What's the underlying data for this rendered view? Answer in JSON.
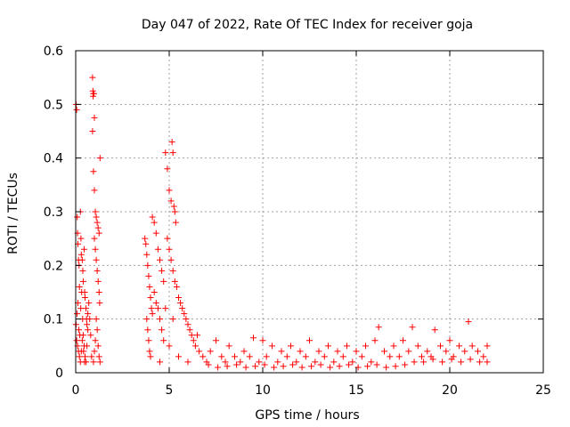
{
  "chart_data": {
    "type": "scatter",
    "title": "Day 047 of 2022, Rate Of TEC Index for receiver goja",
    "xlabel": "GPS time / hours",
    "ylabel": "ROTI / TECUs",
    "xlim": [
      0,
      25
    ],
    "ylim": [
      0,
      0.6
    ],
    "x_ticks": [
      0,
      5,
      10,
      15,
      20,
      25
    ],
    "y_ticks": [
      0,
      0.1,
      0.2,
      0.3,
      0.4,
      0.5,
      0.6
    ],
    "x_tick_labels": [
      "0",
      "5",
      "10",
      "15",
      "20",
      "25"
    ],
    "y_tick_labels": [
      "0",
      "0.1",
      "0.2",
      "0.3",
      "0.4",
      "0.5",
      "0.6"
    ],
    "grid": true,
    "marker": "plus",
    "color": "#ff0000",
    "series": [
      {
        "points": [
          [
            0.02,
            0.5
          ],
          [
            0.05,
            0.49
          ],
          [
            0.08,
            0.29
          ],
          [
            0.1,
            0.26
          ],
          [
            0.12,
            0.24
          ],
          [
            0.15,
            0.21
          ],
          [
            0.18,
            0.2
          ],
          [
            0.2,
            0.16
          ],
          [
            0.25,
            0.3
          ],
          [
            0.28,
            0.25
          ],
          [
            0.3,
            0.22
          ],
          [
            0.35,
            0.21
          ],
          [
            0.38,
            0.19
          ],
          [
            0.4,
            0.17
          ],
          [
            0.45,
            0.23
          ],
          [
            0.48,
            0.15
          ],
          [
            0.5,
            0.14
          ],
          [
            0.55,
            0.12
          ],
          [
            0.58,
            0.1
          ],
          [
            0.6,
            0.09
          ],
          [
            0.65,
            0.08
          ],
          [
            0.05,
            0.06
          ],
          [
            0.1,
            0.05
          ],
          [
            0.15,
            0.04
          ],
          [
            0.2,
            0.03
          ],
          [
            0.25,
            0.02
          ],
          [
            0.3,
            0.04
          ],
          [
            0.35,
            0.06
          ],
          [
            0.4,
            0.07
          ],
          [
            0.45,
            0.05
          ],
          [
            0.5,
            0.03
          ],
          [
            0.55,
            0.02
          ],
          [
            0.6,
            0.05
          ],
          [
            0.65,
            0.11
          ],
          [
            0.7,
            0.13
          ],
          [
            0.75,
            0.1
          ],
          [
            0.8,
            0.07
          ],
          [
            0.85,
            0.03
          ],
          [
            0.02,
            0.09
          ],
          [
            0.07,
            0.11
          ],
          [
            0.12,
            0.13
          ],
          [
            0.17,
            0.08
          ],
          [
            0.22,
            0.07
          ],
          [
            0.27,
            0.12
          ],
          [
            0.32,
            0.15
          ],
          [
            0.37,
            0.1
          ],
          [
            0.42,
            0.04
          ],
          [
            0.47,
            0.02
          ],
          [
            0.9,
            0.55
          ],
          [
            0.92,
            0.525
          ],
          [
            0.95,
            0.52
          ],
          [
            0.93,
            0.515
          ],
          [
            0.97,
            0.52
          ],
          [
            0.9,
            0.45
          ],
          [
            1.0,
            0.475
          ],
          [
            0.95,
            0.375
          ],
          [
            1.0,
            0.34
          ],
          [
            1.3,
            0.4
          ],
          [
            1.05,
            0.3
          ],
          [
            1.1,
            0.29
          ],
          [
            1.15,
            0.28
          ],
          [
            1.2,
            0.27
          ],
          [
            1.25,
            0.26
          ],
          [
            1.0,
            0.25
          ],
          [
            1.05,
            0.23
          ],
          [
            1.1,
            0.21
          ],
          [
            1.15,
            0.19
          ],
          [
            1.2,
            0.17
          ],
          [
            1.25,
            0.15
          ],
          [
            1.28,
            0.13
          ],
          [
            1.1,
            0.1
          ],
          [
            1.15,
            0.08
          ],
          [
            1.2,
            0.05
          ],
          [
            1.25,
            0.03
          ],
          [
            0.95,
            0.02
          ],
          [
            1.0,
            0.04
          ],
          [
            1.05,
            0.06
          ],
          [
            1.3,
            0.02
          ],
          [
            3.7,
            0.25
          ],
          [
            3.75,
            0.24
          ],
          [
            3.8,
            0.22
          ],
          [
            3.85,
            0.2
          ],
          [
            3.9,
            0.18
          ],
          [
            3.95,
            0.16
          ],
          [
            4.0,
            0.14
          ],
          [
            4.05,
            0.12
          ],
          [
            4.1,
            0.11
          ],
          [
            3.8,
            0.1
          ],
          [
            3.85,
            0.08
          ],
          [
            3.9,
            0.06
          ],
          [
            3.95,
            0.04
          ],
          [
            4.0,
            0.03
          ],
          [
            4.1,
            0.29
          ],
          [
            4.2,
            0.28
          ],
          [
            4.3,
            0.26
          ],
          [
            4.4,
            0.23
          ],
          [
            4.5,
            0.21
          ],
          [
            4.6,
            0.19
          ],
          [
            4.7,
            0.17
          ],
          [
            4.2,
            0.15
          ],
          [
            4.3,
            0.13
          ],
          [
            4.4,
            0.12
          ],
          [
            4.5,
            0.1
          ],
          [
            4.6,
            0.08
          ],
          [
            4.7,
            0.06
          ],
          [
            4.8,
            0.41
          ],
          [
            4.9,
            0.38
          ],
          [
            5.0,
            0.34
          ],
          [
            5.1,
            0.32
          ],
          [
            5.15,
            0.43
          ],
          [
            5.2,
            0.41
          ],
          [
            5.25,
            0.31
          ],
          [
            5.3,
            0.3
          ],
          [
            5.35,
            0.28
          ],
          [
            4.9,
            0.25
          ],
          [
            5.0,
            0.23
          ],
          [
            5.1,
            0.21
          ],
          [
            5.2,
            0.19
          ],
          [
            5.3,
            0.17
          ],
          [
            5.4,
            0.16
          ],
          [
            5.5,
            0.14
          ],
          [
            5.6,
            0.13
          ],
          [
            5.7,
            0.12
          ],
          [
            5.8,
            0.11
          ],
          [
            5.9,
            0.1
          ],
          [
            6.0,
            0.09
          ],
          [
            6.1,
            0.08
          ],
          [
            6.2,
            0.07
          ],
          [
            6.3,
            0.06
          ],
          [
            6.4,
            0.05
          ],
          [
            6.5,
            0.07
          ],
          [
            6.6,
            0.04
          ],
          [
            5.0,
            0.05
          ],
          [
            5.5,
            0.03
          ],
          [
            6.0,
            0.02
          ],
          [
            4.5,
            0.02
          ],
          [
            4.8,
            0.12
          ],
          [
            5.2,
            0.1
          ],
          [
            6.8,
            0.03
          ],
          [
            7.0,
            0.02
          ],
          [
            7.2,
            0.04
          ],
          [
            7.5,
            0.06
          ],
          [
            7.8,
            0.03
          ],
          [
            8.0,
            0.02
          ],
          [
            8.2,
            0.05
          ],
          [
            8.5,
            0.03
          ],
          [
            8.8,
            0.02
          ],
          [
            9.0,
            0.04
          ],
          [
            9.3,
            0.03
          ],
          [
            9.5,
            0.065
          ],
          [
            9.8,
            0.02
          ],
          [
            10.0,
            0.06
          ],
          [
            10.2,
            0.03
          ],
          [
            10.5,
            0.05
          ],
          [
            10.8,
            0.02
          ],
          [
            11.0,
            0.04
          ],
          [
            11.3,
            0.03
          ],
          [
            11.5,
            0.05
          ],
          [
            11.8,
            0.02
          ],
          [
            12.0,
            0.04
          ],
          [
            12.3,
            0.03
          ],
          [
            12.5,
            0.06
          ],
          [
            12.8,
            0.02
          ],
          [
            13.0,
            0.04
          ],
          [
            13.3,
            0.03
          ],
          [
            13.5,
            0.05
          ],
          [
            13.8,
            0.02
          ],
          [
            14.0,
            0.04
          ],
          [
            14.3,
            0.03
          ],
          [
            14.5,
            0.05
          ],
          [
            14.8,
            0.02
          ],
          [
            15.0,
            0.04
          ],
          [
            15.3,
            0.03
          ],
          [
            15.5,
            0.05
          ],
          [
            15.8,
            0.02
          ],
          [
            16.0,
            0.06
          ],
          [
            16.2,
            0.085
          ],
          [
            16.5,
            0.04
          ],
          [
            16.8,
            0.03
          ],
          [
            17.0,
            0.05
          ],
          [
            17.3,
            0.03
          ],
          [
            17.5,
            0.06
          ],
          [
            17.8,
            0.04
          ],
          [
            18.0,
            0.085
          ],
          [
            18.3,
            0.05
          ],
          [
            18.5,
            0.03
          ],
          [
            18.8,
            0.04
          ],
          [
            19.0,
            0.03
          ],
          [
            19.2,
            0.08
          ],
          [
            19.5,
            0.05
          ],
          [
            19.8,
            0.04
          ],
          [
            20.0,
            0.06
          ],
          [
            20.2,
            0.03
          ],
          [
            20.5,
            0.05
          ],
          [
            20.8,
            0.04
          ],
          [
            21.0,
            0.095
          ],
          [
            21.2,
            0.05
          ],
          [
            21.5,
            0.04
          ],
          [
            21.8,
            0.03
          ],
          [
            22.0,
            0.05
          ],
          [
            7.1,
            0.015
          ],
          [
            7.6,
            0.01
          ],
          [
            8.1,
            0.012
          ],
          [
            8.6,
            0.015
          ],
          [
            9.1,
            0.01
          ],
          [
            9.6,
            0.012
          ],
          [
            10.1,
            0.015
          ],
          [
            10.6,
            0.01
          ],
          [
            11.1,
            0.012
          ],
          [
            11.6,
            0.015
          ],
          [
            12.1,
            0.01
          ],
          [
            12.6,
            0.012
          ],
          [
            13.1,
            0.015
          ],
          [
            13.6,
            0.01
          ],
          [
            14.1,
            0.012
          ],
          [
            14.6,
            0.015
          ],
          [
            15.1,
            0.01
          ],
          [
            15.6,
            0.012
          ],
          [
            16.1,
            0.015
          ],
          [
            16.6,
            0.01
          ],
          [
            17.1,
            0.012
          ],
          [
            17.6,
            0.015
          ],
          [
            18.1,
            0.02
          ],
          [
            18.6,
            0.02
          ],
          [
            19.1,
            0.025
          ],
          [
            19.6,
            0.02
          ],
          [
            20.1,
            0.025
          ],
          [
            20.6,
            0.02
          ],
          [
            21.1,
            0.025
          ],
          [
            21.6,
            0.02
          ],
          [
            22.0,
            0.02
          ]
        ]
      }
    ]
  }
}
